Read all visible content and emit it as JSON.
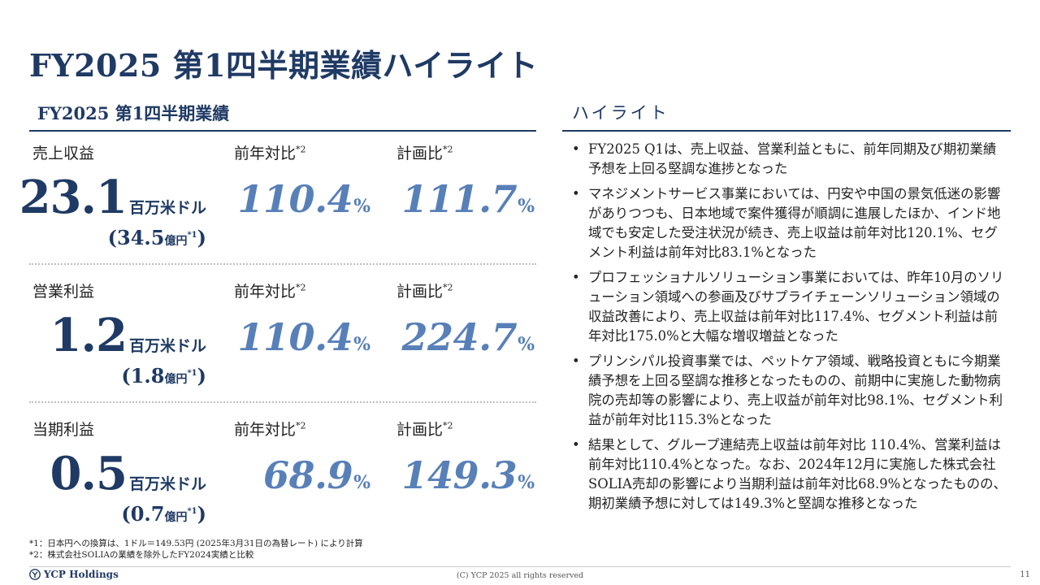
{
  "title": "FY2025 第1四半期業績ハイライト",
  "left_section": {
    "title": "FY2025 第1四半期業績"
  },
  "right_section": {
    "title": "ハイライト"
  },
  "columns": {
    "yoy": "前年対比",
    "plan": "計画比",
    "footnote_ref": "*2"
  },
  "metrics": [
    {
      "label": "売上収益",
      "value": "23.1",
      "unit": "百万米ドル",
      "yen_value": "34.5",
      "yen_unit": "億円",
      "yen_ref": "*1",
      "yoy": "110.4",
      "plan": "111.7",
      "pct": "%"
    },
    {
      "label": "営業利益",
      "value": "1.2",
      "unit": "百万米ドル",
      "yen_value": "1.8",
      "yen_unit": "億円",
      "yen_ref": "*1",
      "yoy": "110.4",
      "plan": "224.7",
      "pct": "%"
    },
    {
      "label": "当期利益",
      "value": "0.5",
      "unit": "百万米ドル",
      "yen_value": "0.7",
      "yen_unit": "億円",
      "yen_ref": "*1",
      "yoy": "68.9",
      "plan": "149.3",
      "pct": "%"
    }
  ],
  "highlights": [
    "FY2025 Q1は、売上収益、営業利益ともに、前年同期及び期初業績予想を上回る堅調な進捗となった",
    "マネジメントサービス事業においては、円安や中国の景気低迷の影響がありつつも、日本地域で案件獲得が順調に進展したほか、インド地域でも安定した受注状況が続き、売上収益は前年対比120.1%、セグメント利益は前年対比83.1%となった",
    "プロフェッショナルソリューション事業においては、昨年10月のソリューション領域への参画及びサプライチェーンソリューション領域の収益改善により、売上収益は前年対比117.4%、セグメント利益は前年対比175.0%と大幅な増収増益となった",
    "プリンシパル投資事業では、ペットケア領域、戦略投資ともに今期業績予想を上回る堅調な推移となったものの、前期中に実施した動物病院の売却等の影響により、売上収益が前年対比98.1%、セグメント利益が前年対比115.3%となった",
    "結果として、グループ連結売上収益は前年対比 110.4%、営業利益は前年対比110.4%となった。なお、2024年12月に実施した株式会社SOLIA売却の影響により当期利益は前年対比68.9%となったものの、期初業績予想に対しては149.3%と堅調な推移となった"
  ],
  "footnotes": [
    "*1：日本円への換算は、1ドル＝149.53円 (2025年3月31日の為替レート) により計算",
    "*2：株式会社SOLIAの業績を除外したFY2024実績と比較"
  ],
  "footer": {
    "logo_text": "YCP Holdings",
    "logo_icon": "ycp-logo-icon",
    "copyright": "(C) YCP 2025 all rights reserved",
    "page_number": "11"
  },
  "colors": {
    "navy": "#1f3a64",
    "accent_blue": "#5880b8"
  }
}
